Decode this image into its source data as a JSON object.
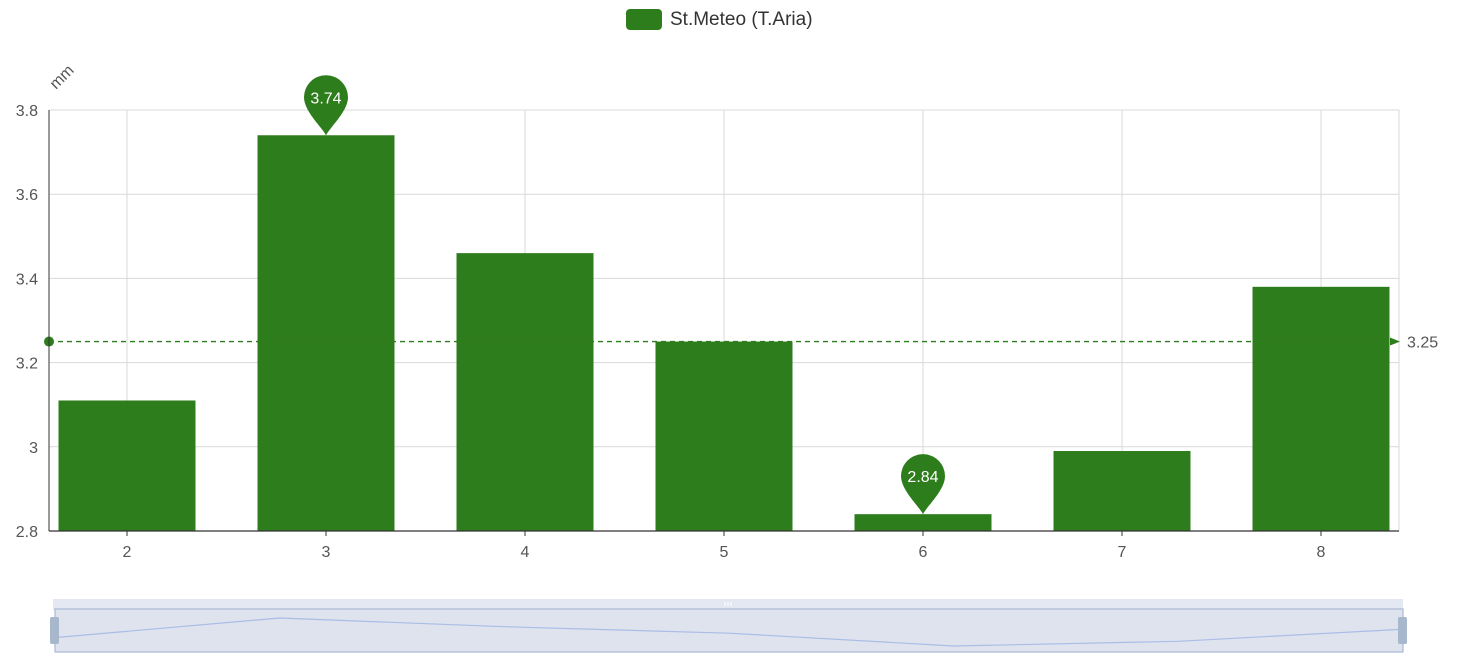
{
  "chart_data": {
    "type": "bar",
    "categories": [
      "2",
      "3",
      "4",
      "5",
      "6",
      "7",
      "8"
    ],
    "series": [
      {
        "name": "St.Meteo (T.Aria)",
        "values": [
          3.11,
          3.74,
          3.46,
          3.25,
          2.84,
          2.99,
          3.38
        ]
      }
    ],
    "ylabel": "mm",
    "ylim": [
      2.8,
      3.8
    ],
    "yticks": [
      "2.8",
      "3",
      "3.2",
      "3.4",
      "3.6",
      "3.8"
    ],
    "grid": true,
    "legend_position": "top-center",
    "mark_points": [
      {
        "label": "3.74",
        "category": "3",
        "value": 3.74
      },
      {
        "label": "2.84",
        "category": "6",
        "value": 2.84
      }
    ],
    "mark_line": {
      "label": "3.25",
      "value": 3.25
    },
    "colors": {
      "bar": "#2e7d1c",
      "grid": "#d9d9d9",
      "axis": "#333333",
      "zoom_fill": "#dfe3ee",
      "zoom_border": "#aab8d6",
      "zoom_line": "#a9bde6"
    },
    "data_zoom": {
      "start": 0,
      "end": 1
    }
  }
}
